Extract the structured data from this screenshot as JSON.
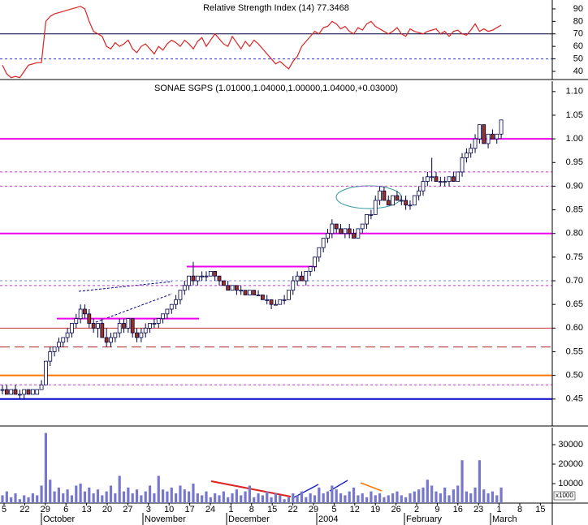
{
  "chart_data": [
    {
      "type": "line",
      "title": "Relative Strength Index (14) 77.3468",
      "ylim": [
        33.5,
        97.1
      ],
      "yticks": [
        40,
        50,
        60,
        70,
        80,
        90
      ],
      "hlines": [
        {
          "value": 70,
          "color": "#000033",
          "style": "solid"
        },
        {
          "value": 50,
          "color": "#3333cc",
          "style": "dashed"
        }
      ],
      "series": [
        {
          "color": "#dd2222",
          "values": [
            45,
            38,
            35,
            36,
            35,
            40,
            45,
            46,
            47,
            47,
            80,
            84,
            86,
            87,
            88,
            89,
            90,
            91,
            92,
            90,
            80,
            72,
            70,
            68,
            60,
            58,
            63,
            60,
            62,
            65,
            58,
            55,
            60,
            62,
            58,
            54,
            60,
            57,
            62,
            65,
            63,
            60,
            65,
            62,
            58,
            64,
            67,
            60,
            65,
            70,
            66,
            62,
            60,
            68,
            63,
            58,
            64,
            60,
            65,
            62,
            58,
            54,
            50,
            46,
            48,
            45,
            42,
            48,
            52,
            60,
            64,
            68,
            72,
            70,
            75,
            76,
            80,
            78,
            74,
            76,
            72,
            70,
            75,
            73,
            78,
            80,
            76,
            74,
            72,
            70,
            72,
            75,
            70,
            68,
            74,
            72,
            71,
            70,
            72,
            73,
            74,
            70,
            72,
            68,
            72,
            73,
            70,
            69,
            73,
            78,
            72,
            74,
            72,
            73,
            75,
            77
          ]
        }
      ]
    },
    {
      "type": "candlestick",
      "title": "SONAE SGPS (1.01000,1.04000,1.00000,1.04000,+0.03000)",
      "ylim": [
        0.393,
        1.122
      ],
      "yticks": [
        0.45,
        {
          "value": 0.5,
          "label": "0.50"
        },
        0.55,
        {
          "value": 0.6,
          "label": "0.60"
        },
        0.65,
        {
          "value": 0.7,
          "label": "0.70"
        },
        0.75,
        {
          "value": 0.8,
          "label": "0.80"
        },
        0.85,
        {
          "value": 0.9,
          "label": "0.90"
        },
        0.95,
        {
          "value": 1,
          "label": "1.00"
        },
        1.05,
        {
          "value": 1.1,
          "label": "1.10"
        }
      ],
      "up_color": "#ffffff",
      "down_color": "#993322",
      "edge_color": "#000044",
      "hlines": [
        {
          "value": 1.0,
          "color": "#ee00ee",
          "style": "solid"
        },
        {
          "value": 0.93,
          "color": "#cc33cc",
          "style": "dashed"
        },
        {
          "value": 0.9,
          "color": "#cc33cc",
          "style": "dashed"
        },
        {
          "value": 0.8,
          "color": "#ee00ee",
          "style": "solid"
        },
        {
          "value": 0.73,
          "color": "#ee00ee",
          "style": "solid"
        },
        {
          "value": 0.7,
          "color": "#8888cc",
          "style": "dashed"
        },
        {
          "value": 0.69,
          "color": "#cc33cc",
          "style": "dashed"
        },
        {
          "value": 0.62,
          "color": "#ee00ee",
          "style": "solid"
        },
        {
          "value": 0.6,
          "color": "#cc3333",
          "style": "solid"
        },
        {
          "value": 0.56,
          "color": "#aa2222",
          "style": "longdash"
        },
        {
          "value": 0.5,
          "color": "#ff7700",
          "style": "solid"
        },
        {
          "value": 0.48,
          "color": "#cc33cc",
          "style": "dashed"
        },
        {
          "value": 0.45,
          "color": "#0000cc",
          "style": "solid"
        }
      ],
      "ohlc": [
        [
          0.47,
          0.48,
          0.46,
          0.47
        ],
        [
          0.47,
          0.48,
          0.46,
          0.46
        ],
        [
          0.46,
          0.47,
          0.46,
          0.47
        ],
        [
          0.47,
          0.48,
          0.46,
          0.46
        ],
        [
          0.46,
          0.47,
          0.45,
          0.46
        ],
        [
          0.46,
          0.47,
          0.45,
          0.47
        ],
        [
          0.47,
          0.47,
          0.46,
          0.46
        ],
        [
          0.46,
          0.47,
          0.46,
          0.47
        ],
        [
          0.46,
          0.47,
          0.46,
          0.47
        ],
        [
          0.47,
          0.49,
          0.47,
          0.48
        ],
        [
          0.48,
          0.53,
          0.48,
          0.53
        ],
        [
          0.53,
          0.56,
          0.52,
          0.55
        ],
        [
          0.55,
          0.56,
          0.54,
          0.56
        ],
        [
          0.56,
          0.58,
          0.55,
          0.57
        ],
        [
          0.57,
          0.58,
          0.56,
          0.58
        ],
        [
          0.58,
          0.6,
          0.57,
          0.59
        ],
        [
          0.59,
          0.61,
          0.58,
          0.61
        ],
        [
          0.61,
          0.63,
          0.6,
          0.62
        ],
        [
          0.62,
          0.65,
          0.61,
          0.64
        ],
        [
          0.64,
          0.65,
          0.62,
          0.63
        ],
        [
          0.63,
          0.64,
          0.6,
          0.61
        ],
        [
          0.61,
          0.62,
          0.59,
          0.6
        ],
        [
          0.6,
          0.61,
          0.58,
          0.61
        ],
        [
          0.61,
          0.62,
          0.58,
          0.58
        ],
        [
          0.58,
          0.6,
          0.56,
          0.57
        ],
        [
          0.57,
          0.59,
          0.56,
          0.58
        ],
        [
          0.58,
          0.59,
          0.57,
          0.59
        ],
        [
          0.59,
          0.62,
          0.58,
          0.61
        ],
        [
          0.61,
          0.62,
          0.59,
          0.6
        ],
        [
          0.6,
          0.62,
          0.59,
          0.62
        ],
        [
          0.62,
          0.62,
          0.58,
          0.59
        ],
        [
          0.59,
          0.6,
          0.57,
          0.58
        ],
        [
          0.58,
          0.6,
          0.57,
          0.59
        ],
        [
          0.59,
          0.61,
          0.58,
          0.6
        ],
        [
          0.6,
          0.61,
          0.59,
          0.61
        ],
        [
          0.61,
          0.62,
          0.6,
          0.61
        ],
        [
          0.61,
          0.62,
          0.6,
          0.62
        ],
        [
          0.62,
          0.63,
          0.61,
          0.63
        ],
        [
          0.63,
          0.64,
          0.62,
          0.64
        ],
        [
          0.64,
          0.65,
          0.63,
          0.65
        ],
        [
          0.65,
          0.67,
          0.64,
          0.66
        ],
        [
          0.66,
          0.68,
          0.65,
          0.68
        ],
        [
          0.68,
          0.7,
          0.67,
          0.69
        ],
        [
          0.69,
          0.71,
          0.68,
          0.71
        ],
        [
          0.71,
          0.74,
          0.69,
          0.7
        ],
        [
          0.7,
          0.71,
          0.69,
          0.71
        ],
        [
          0.71,
          0.72,
          0.7,
          0.71
        ],
        [
          0.71,
          0.72,
          0.7,
          0.71
        ],
        [
          0.71,
          0.72,
          0.71,
          0.72
        ],
        [
          0.72,
          0.72,
          0.7,
          0.71
        ],
        [
          0.71,
          0.71,
          0.69,
          0.7
        ],
        [
          0.7,
          0.7,
          0.69,
          0.69
        ],
        [
          0.69,
          0.7,
          0.68,
          0.68
        ],
        [
          0.68,
          0.69,
          0.68,
          0.69
        ],
        [
          0.69,
          0.69,
          0.67,
          0.68
        ],
        [
          0.68,
          0.69,
          0.67,
          0.68
        ],
        [
          0.68,
          0.68,
          0.67,
          0.67
        ],
        [
          0.67,
          0.68,
          0.67,
          0.68
        ],
        [
          0.68,
          0.68,
          0.67,
          0.67
        ],
        [
          0.67,
          0.68,
          0.67,
          0.67
        ],
        [
          0.67,
          0.67,
          0.66,
          0.66
        ],
        [
          0.66,
          0.67,
          0.65,
          0.66
        ],
        [
          0.66,
          0.66,
          0.64,
          0.65
        ],
        [
          0.65,
          0.66,
          0.65,
          0.65
        ],
        [
          0.65,
          0.66,
          0.65,
          0.66
        ],
        [
          0.66,
          0.67,
          0.65,
          0.66
        ],
        [
          0.66,
          0.68,
          0.66,
          0.68
        ],
        [
          0.68,
          0.71,
          0.67,
          0.7
        ],
        [
          0.7,
          0.72,
          0.69,
          0.71
        ],
        [
          0.71,
          0.72,
          0.7,
          0.7
        ],
        [
          0.7,
          0.72,
          0.69,
          0.72
        ],
        [
          0.72,
          0.73,
          0.71,
          0.73
        ],
        [
          0.73,
          0.75,
          0.72,
          0.75
        ],
        [
          0.75,
          0.77,
          0.74,
          0.77
        ],
        [
          0.77,
          0.79,
          0.76,
          0.79
        ],
        [
          0.79,
          0.81,
          0.78,
          0.8
        ],
        [
          0.8,
          0.83,
          0.79,
          0.82
        ],
        [
          0.82,
          0.82,
          0.8,
          0.81
        ],
        [
          0.81,
          0.82,
          0.8,
          0.8
        ],
        [
          0.8,
          0.81,
          0.79,
          0.81
        ],
        [
          0.81,
          0.82,
          0.79,
          0.8
        ],
        [
          0.8,
          0.81,
          0.79,
          0.79
        ],
        [
          0.79,
          0.81,
          0.79,
          0.81
        ],
        [
          0.81,
          0.82,
          0.8,
          0.82
        ],
        [
          0.82,
          0.84,
          0.81,
          0.84
        ],
        [
          0.84,
          0.85,
          0.83,
          0.84
        ],
        [
          0.84,
          0.88,
          0.84,
          0.87
        ],
        [
          0.87,
          0.9,
          0.86,
          0.89
        ],
        [
          0.89,
          0.9,
          0.87,
          0.87
        ],
        [
          0.87,
          0.88,
          0.86,
          0.86
        ],
        [
          0.86,
          0.88,
          0.86,
          0.88
        ],
        [
          0.88,
          0.89,
          0.87,
          0.87
        ],
        [
          0.87,
          0.88,
          0.86,
          0.87
        ],
        [
          0.87,
          0.88,
          0.85,
          0.86
        ],
        [
          0.86,
          0.87,
          0.85,
          0.86
        ],
        [
          0.86,
          0.88,
          0.86,
          0.88
        ],
        [
          0.88,
          0.9,
          0.87,
          0.89
        ],
        [
          0.89,
          0.92,
          0.88,
          0.91
        ],
        [
          0.91,
          0.93,
          0.9,
          0.92
        ],
        [
          0.92,
          0.96,
          0.91,
          0.92
        ],
        [
          0.92,
          0.93,
          0.91,
          0.91
        ],
        [
          0.91,
          0.92,
          0.9,
          0.91
        ],
        [
          0.91,
          0.92,
          0.9,
          0.91
        ],
        [
          0.91,
          0.92,
          0.9,
          0.92
        ],
        [
          0.92,
          0.93,
          0.91,
          0.91
        ],
        [
          0.91,
          0.93,
          0.91,
          0.93
        ],
        [
          0.93,
          0.97,
          0.92,
          0.96
        ],
        [
          0.96,
          0.98,
          0.95,
          0.97
        ],
        [
          0.97,
          0.99,
          0.96,
          0.98
        ],
        [
          0.98,
          1.01,
          0.97,
          1.0
        ],
        [
          1.0,
          1.03,
          0.99,
          1.03
        ],
        [
          1.03,
          1.03,
          0.99,
          0.99
        ],
        [
          0.99,
          1.01,
          0.98,
          1.01
        ],
        [
          1.01,
          1.02,
          1.0,
          1.0
        ],
        [
          1.0,
          1.01,
          0.99,
          1.01
        ],
        [
          1.01,
          1.04,
          1.0,
          1.04
        ]
      ]
    },
    {
      "type": "bar",
      "ylim": [
        0,
        38750
      ],
      "yticks": [
        10000,
        20000,
        30000
      ],
      "unit_label": "x1000",
      "color": "#7777cc",
      "values": [
        4000,
        6000,
        3000,
        5000,
        2000,
        4000,
        3000,
        5000,
        4000,
        9000,
        36000,
        12000,
        6000,
        8000,
        5000,
        7000,
        4000,
        9000,
        10000,
        6000,
        8000,
        5000,
        7000,
        4000,
        6000,
        9000,
        5000,
        14000,
        6000,
        8000,
        5000,
        7000,
        4000,
        6000,
        9000,
        5000,
        14000,
        7000,
        6000,
        8000,
        5000,
        9000,
        7000,
        6000,
        10000,
        5000,
        4000,
        6000,
        3000,
        5000,
        4000,
        6000,
        3000,
        5000,
        7000,
        4000,
        6000,
        9000,
        3000,
        5000,
        4000,
        6000,
        3000,
        5000,
        4000,
        2000,
        3000,
        5000,
        4000,
        6000,
        3000,
        5000,
        4000,
        8000,
        5000,
        6000,
        9000,
        7000,
        5000,
        4000,
        6000,
        8000,
        4000,
        5000,
        3000,
        6000,
        4000,
        5000,
        3000,
        4000,
        5000,
        6000,
        4000,
        3000,
        5000,
        6000,
        7000,
        8000,
        12000,
        9000,
        6000,
        5000,
        8000,
        4000,
        7000,
        9000,
        22000,
        6000,
        5000,
        8000,
        22000,
        7000,
        5000,
        6000,
        4000,
        8000
      ]
    },
    {
      "type": "axis",
      "day_labels": [
        "5",
        "22",
        "29",
        "6",
        "13",
        "20",
        "27",
        "3",
        "10",
        "17",
        "24",
        "1",
        "8",
        "15",
        "22",
        "29",
        "5",
        "12",
        "19",
        "26",
        "2",
        "9",
        "16",
        "23",
        "1",
        "8",
        "15"
      ],
      "months": [
        "October",
        "November",
        "December",
        "2004",
        "February",
        "March"
      ]
    }
  ]
}
